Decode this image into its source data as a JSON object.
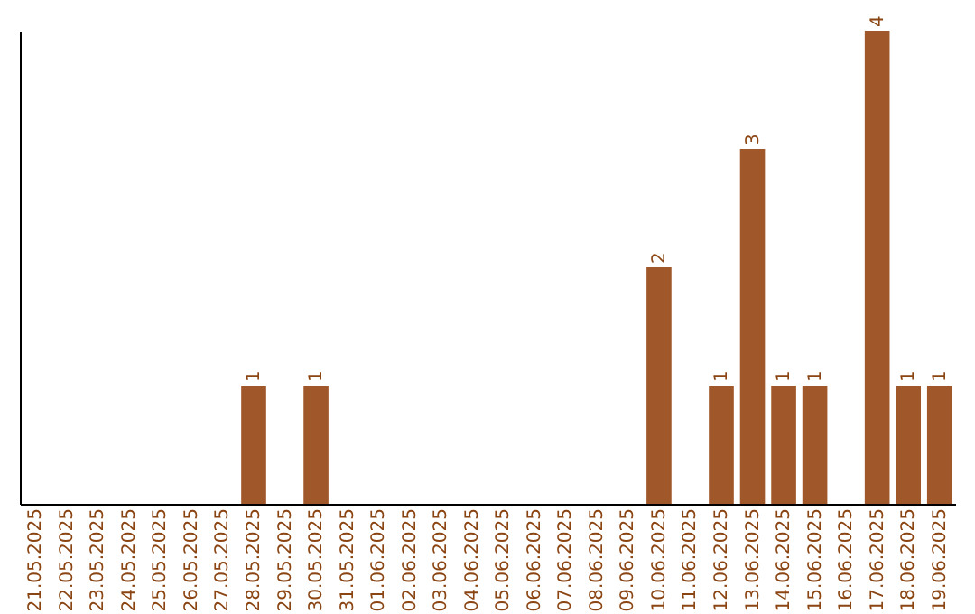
{
  "chart_data": {
    "type": "bar",
    "categories": [
      "21.05.2025",
      "22.05.2025",
      "23.05.2025",
      "24.05.2025",
      "25.05.2025",
      "26.05.2025",
      "27.05.2025",
      "28.05.2025",
      "29.05.2025",
      "30.05.2025",
      "31.05.2025",
      "01.06.2025",
      "02.06.2025",
      "03.06.2025",
      "04.06.2025",
      "05.06.2025",
      "06.06.2025",
      "07.06.2025",
      "08.06.2025",
      "09.06.2025",
      "10.06.2025",
      "11.06.2025",
      "12.06.2025",
      "13.06.2025",
      "14.06.2025",
      "15.06.2025",
      "16.06.2025",
      "17.06.2025",
      "18.06.2025",
      "19.06.2025"
    ],
    "values": [
      0,
      0,
      0,
      0,
      0,
      0,
      0,
      1,
      0,
      1,
      0,
      0,
      0,
      0,
      0,
      0,
      0,
      0,
      0,
      0,
      2,
      0,
      1,
      3,
      1,
      1,
      0,
      4,
      1,
      1
    ],
    "value_labels": [
      null,
      null,
      null,
      null,
      null,
      null,
      null,
      "1",
      null,
      "1",
      null,
      null,
      null,
      null,
      null,
      null,
      null,
      null,
      null,
      null,
      "2",
      null,
      "1",
      "3",
      "1",
      "1",
      null,
      "4",
      "1",
      "1"
    ],
    "color": "#a0582a",
    "tick_labels": "x",
    "grid": false
  }
}
